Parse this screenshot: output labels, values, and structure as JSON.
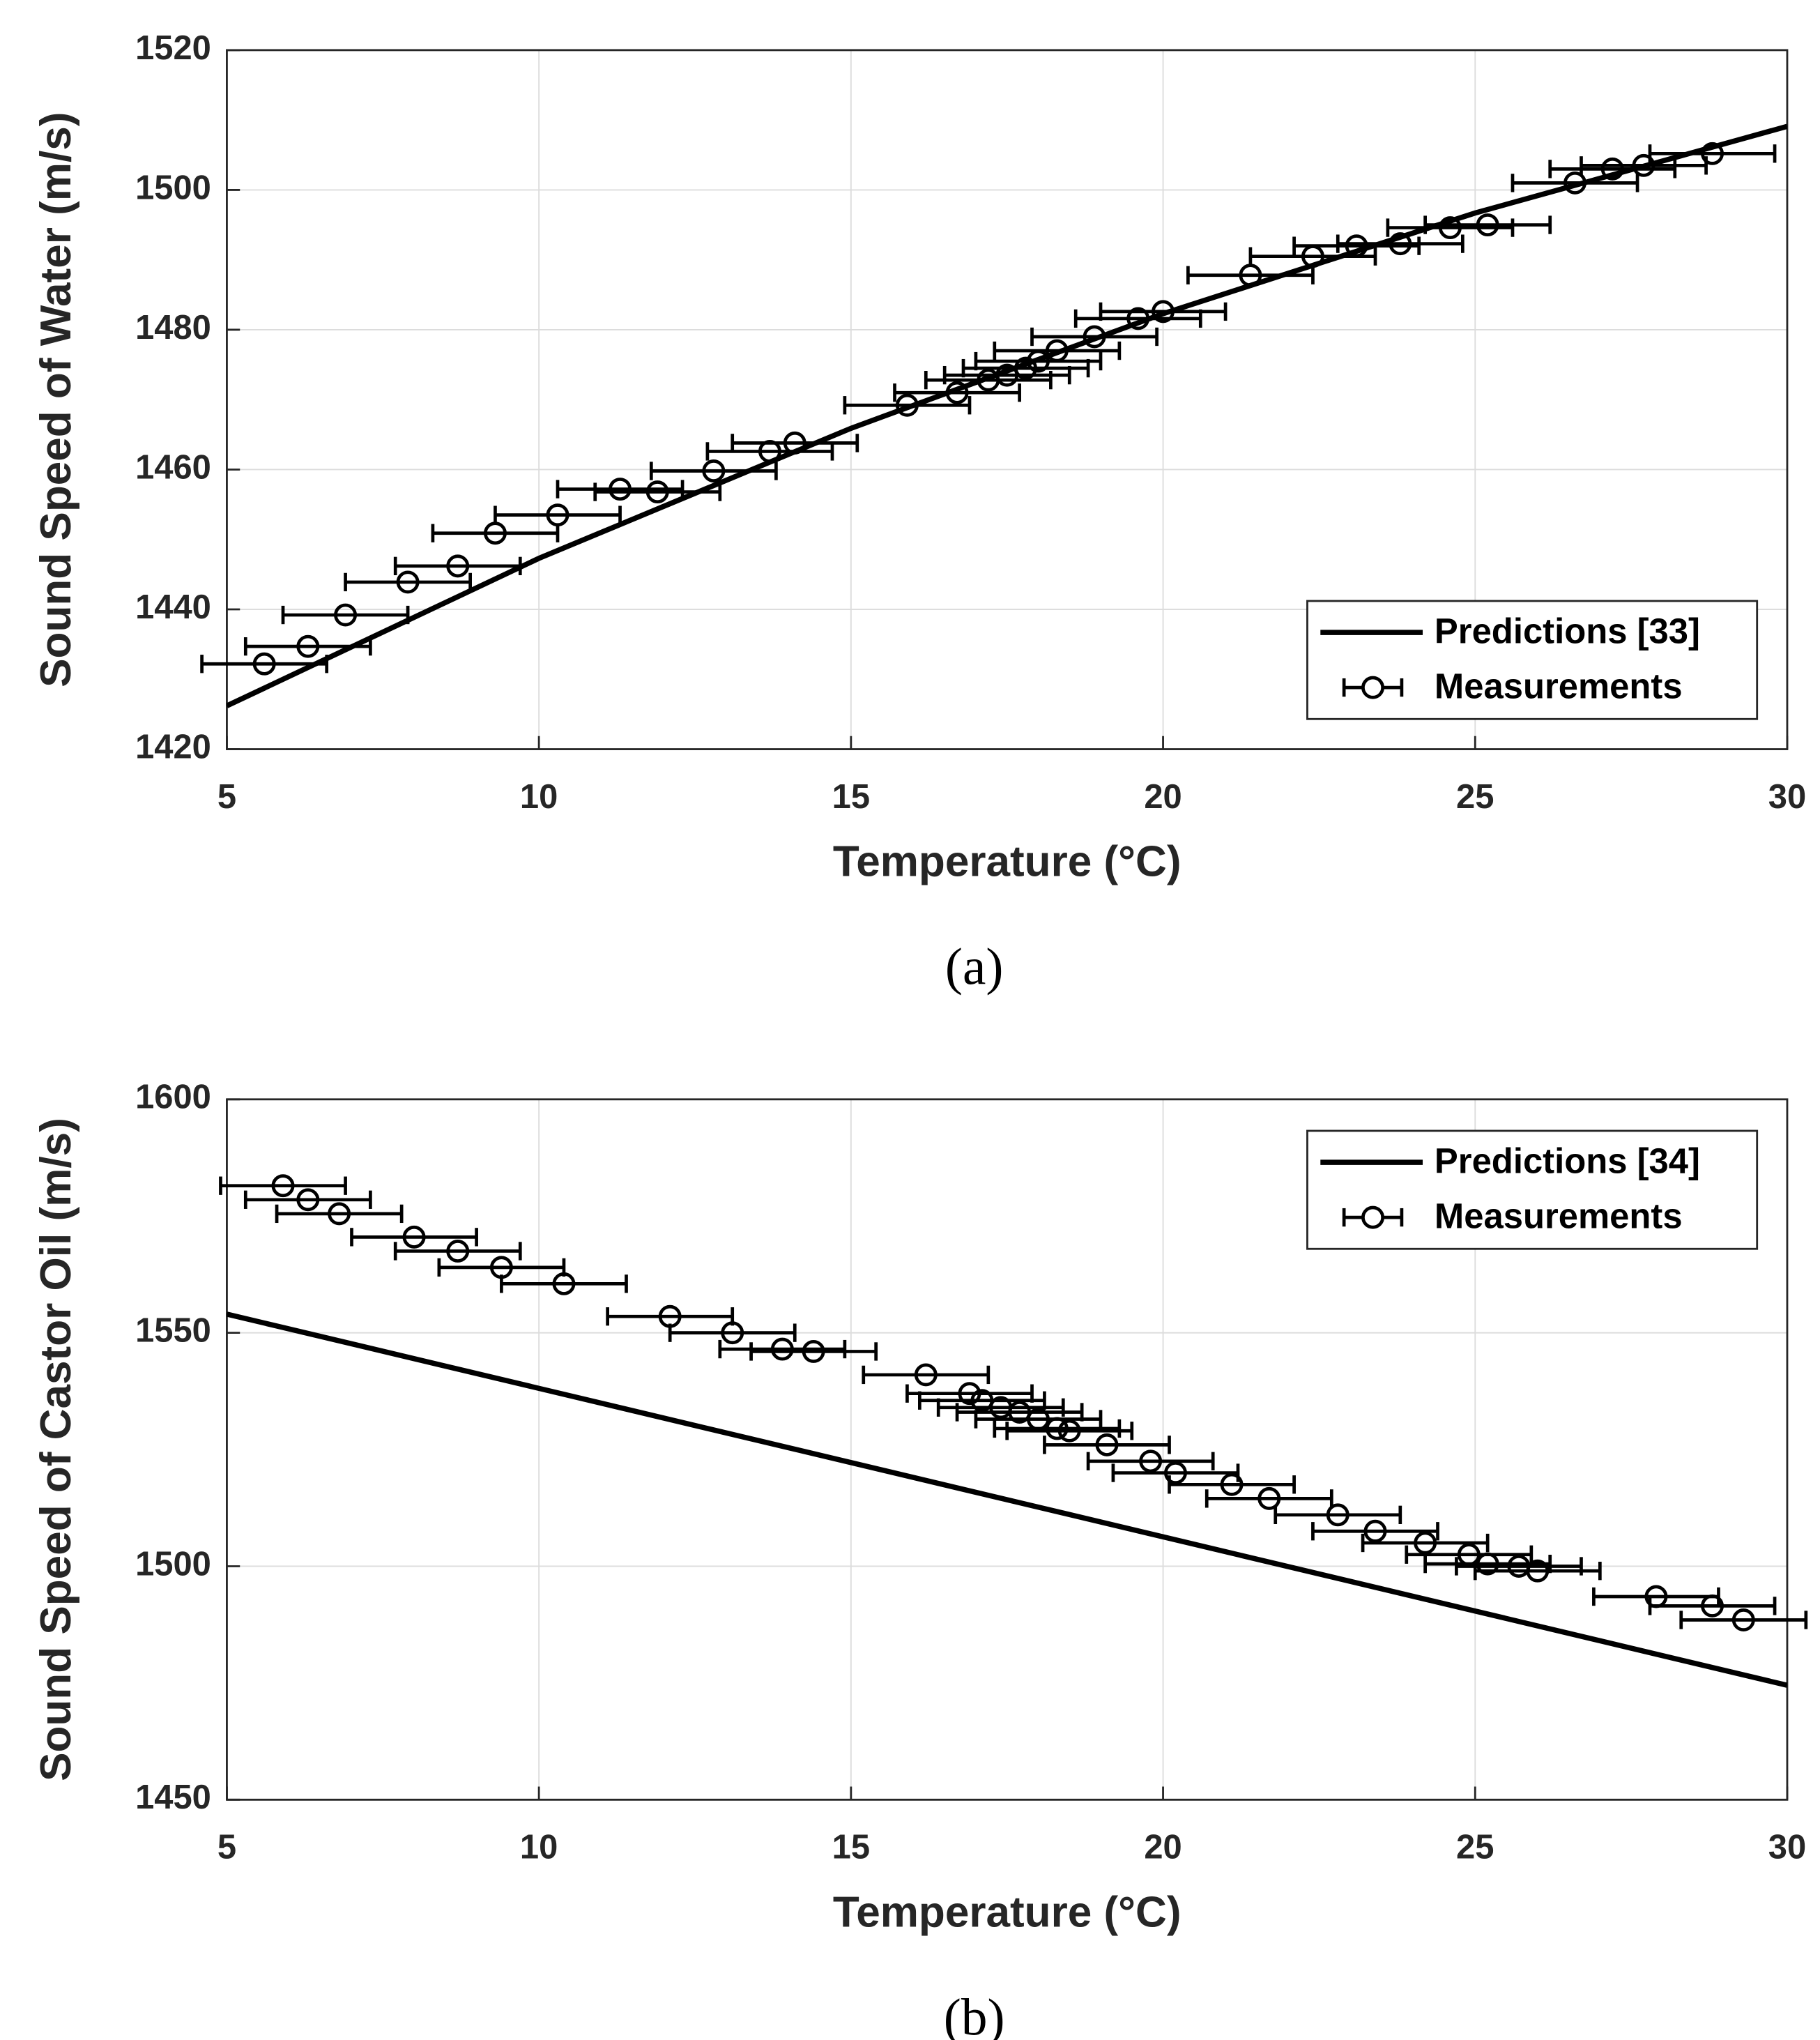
{
  "chart_data": [
    {
      "type": "scatter",
      "panel": "(a)",
      "xlabel": "Temperature (°C)",
      "ylabel": "Sound Speed of Water (m/s)",
      "xlim": [
        5,
        30
      ],
      "xticks": [
        5,
        10,
        15,
        20,
        25,
        30
      ],
      "ylim": [
        1420,
        1520
      ],
      "yticks": [
        1420,
        1440,
        1460,
        1480,
        1500,
        1520
      ],
      "grid": true,
      "legend": "lower right",
      "series": [
        {
          "name": "Predictions [33]",
          "style": "line",
          "color": "#000000",
          "x": [
            5,
            10,
            15,
            20,
            25,
            30
          ],
          "values": [
            1426.2,
            1447.3,
            1465.9,
            1482.3,
            1496.7,
            1509.1
          ]
        },
        {
          "name": "Measurements",
          "style": "markers",
          "color": "#000000",
          "x": [
            5.6,
            6.3,
            6.9,
            7.9,
            8.7,
            9.3,
            10.3,
            11.3,
            11.9,
            12.8,
            13.7,
            14.1,
            15.9,
            16.7,
            17.2,
            17.5,
            17.8,
            18.0,
            18.3,
            18.9,
            19.6,
            20.0,
            21.4,
            22.4,
            23.1,
            23.8,
            24.6,
            25.2,
            26.6,
            27.2,
            27.7,
            28.8
          ],
          "values": [
            1432.2,
            1434.7,
            1439.2,
            1443.9,
            1446.2,
            1450.9,
            1453.5,
            1457.2,
            1456.8,
            1459.8,
            1462.6,
            1463.8,
            1469.2,
            1471,
            1472.8,
            1473.5,
            1474.5,
            1475.5,
            1477,
            1479,
            1481.6,
            1482.6,
            1487.8,
            1490.5,
            1492,
            1492.3,
            1494.6,
            1495,
            1501,
            1503,
            1503.5,
            1505.2
          ],
          "xerr": [
            1,
            1,
            1,
            1,
            1,
            1,
            1,
            1,
            1,
            1,
            1,
            1,
            1,
            1,
            1,
            1,
            1,
            1,
            1,
            1,
            1,
            1,
            1,
            1,
            1,
            1,
            1,
            1,
            1,
            1,
            1,
            1
          ]
        }
      ]
    },
    {
      "type": "scatter",
      "panel": "(b)",
      "xlabel": "Temperature (°C)",
      "ylabel": "Sound Speed of Castor Oil (m/s)",
      "xlim": [
        5,
        30
      ],
      "xticks": [
        5,
        10,
        15,
        20,
        25,
        30
      ],
      "ylim": [
        1450,
        1600
      ],
      "yticks": [
        1450,
        1500,
        1550,
        1600
      ],
      "grid": true,
      "legend": "upper right",
      "series": [
        {
          "name": "Predictions [34]",
          "style": "line",
          "color": "#000000",
          "x": [
            5,
            30
          ],
          "values": [
            1554,
            1474.5
          ]
        },
        {
          "name": "Measurements",
          "style": "markers",
          "color": "#000000",
          "x": [
            5.9,
            6.3,
            6.8,
            8.0,
            8.7,
            9.4,
            10.4,
            12.1,
            13.1,
            13.9,
            14.4,
            16.2,
            16.9,
            17.1,
            17.4,
            17.7,
            18.0,
            18.3,
            18.5,
            19.1,
            19.8,
            20.2,
            21.1,
            21.7,
            22.8,
            23.4,
            24.2,
            24.9,
            25.2,
            25.7,
            26.0,
            27.9,
            28.8,
            29.3
          ],
          "values": [
            1581.5,
            1578.5,
            1575.5,
            1570.5,
            1567.5,
            1564,
            1560.5,
            1553.5,
            1550,
            1546.5,
            1546,
            1541,
            1537,
            1535.5,
            1534,
            1533,
            1531.5,
            1529.5,
            1529,
            1526,
            1522.5,
            1520,
            1517.5,
            1514.5,
            1511,
            1507.5,
            1505,
            1502.5,
            1500.5,
            1500,
            1499,
            1493.5,
            1491.5,
            1488.5
          ],
          "xerr": [
            1,
            1,
            1,
            1,
            1,
            1,
            1,
            1,
            1,
            1,
            1,
            1,
            1,
            1,
            1,
            1,
            1,
            1,
            1,
            1,
            1,
            1,
            1,
            1,
            1,
            1,
            1,
            1,
            1,
            1,
            1,
            1,
            1,
            1
          ]
        }
      ]
    }
  ]
}
